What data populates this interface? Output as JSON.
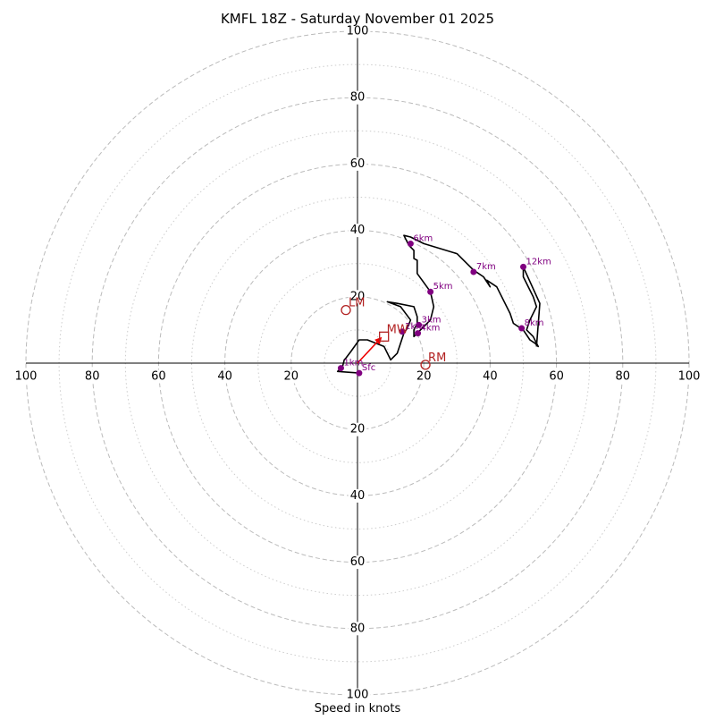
{
  "chart_data": {
    "type": "hodograph",
    "title": "KMFL 18Z - Saturday November 01 2025",
    "xlabel": "Speed in knots",
    "units": "knots",
    "range": 100,
    "ring_major": [
      20,
      40,
      60,
      80,
      100
    ],
    "ring_minor": [
      10,
      30,
      50,
      70,
      90
    ],
    "tick_values": [
      20,
      40,
      60,
      80,
      100
    ],
    "colors": {
      "trace": "#000000",
      "height_marker": "#800080",
      "storm_motion": "#b22222",
      "mean_wind_arrow": "#ee0000",
      "grid_major": "#bbbbbb",
      "grid_minor": "#cccccc",
      "axes": "#000000"
    },
    "trace": [
      [
        0.5,
        -3
      ],
      [
        -6,
        -2.5
      ],
      [
        -4.5,
        -1
      ],
      [
        -4,
        1
      ],
      [
        -3.5,
        1.5
      ],
      [
        -2,
        3.5
      ],
      [
        0.5,
        7
      ],
      [
        3,
        7
      ],
      [
        8,
        5
      ],
      [
        10,
        1
      ],
      [
        12,
        3
      ],
      [
        13,
        6
      ],
      [
        14,
        9
      ],
      [
        15,
        10.5
      ],
      [
        16,
        13
      ],
      [
        13,
        17
      ],
      [
        9,
        18.5
      ],
      [
        12,
        18
      ],
      [
        17,
        17
      ],
      [
        18,
        14
      ],
      [
        18,
        12
      ],
      [
        17,
        10
      ],
      [
        17,
        8
      ],
      [
        18,
        9
      ],
      [
        22,
        13
      ],
      [
        23,
        17
      ],
      [
        22,
        21.5
      ],
      [
        19.5,
        25
      ],
      [
        18,
        27
      ],
      [
        18,
        31
      ],
      [
        17,
        31.5
      ],
      [
        17,
        34
      ],
      [
        15.5,
        35.5
      ],
      [
        14,
        38.5
      ],
      [
        16,
        38
      ],
      [
        20,
        36
      ],
      [
        30,
        33
      ],
      [
        35,
        28
      ],
      [
        38,
        26
      ],
      [
        40,
        23
      ],
      [
        39,
        25
      ],
      [
        42,
        23
      ],
      [
        46,
        15
      ],
      [
        47,
        12
      ],
      [
        50,
        10
      ],
      [
        52,
        7
      ],
      [
        53.5,
        6
      ],
      [
        54.5,
        5
      ],
      [
        54,
        6
      ],
      [
        53,
        8
      ],
      [
        51,
        10
      ],
      [
        52,
        13
      ],
      [
        54,
        17
      ],
      [
        53,
        20
      ],
      [
        52,
        22
      ],
      [
        50,
        26
      ],
      [
        50,
        29
      ],
      [
        55,
        18
      ],
      [
        54,
        5
      ]
    ],
    "height_markers": [
      {
        "label": "Sfc",
        "u": 0.5,
        "v": -3
      },
      {
        "label": "1km",
        "u": -5,
        "v": -1.5
      },
      {
        "label": "2km",
        "u": 13.5,
        "v": 9.5
      },
      {
        "label": "3km",
        "u": 18.5,
        "v": 11.5
      },
      {
        "label": "4km",
        "u": 18.2,
        "v": 9
      },
      {
        "label": "5km",
        "u": 22,
        "v": 21.5
      },
      {
        "label": "6km",
        "u": 16,
        "v": 36
      },
      {
        "label": "7km",
        "u": 35,
        "v": 27.5
      },
      {
        "label": "8km",
        "u": 49.5,
        "v": 10.5
      },
      {
        "label": "12km",
        "u": 50,
        "v": 29
      }
    ],
    "storm_motion": [
      {
        "label": "LM",
        "u": -3.5,
        "v": 16,
        "marker": "circle"
      },
      {
        "label": "MW",
        "u": 8,
        "v": 8,
        "marker": "square"
      },
      {
        "label": "RM",
        "u": 20.5,
        "v": -0.5,
        "marker": "circle"
      }
    ],
    "mean_wind_arrow": {
      "from": [
        0,
        0
      ],
      "to": [
        7,
        7.5
      ]
    }
  }
}
